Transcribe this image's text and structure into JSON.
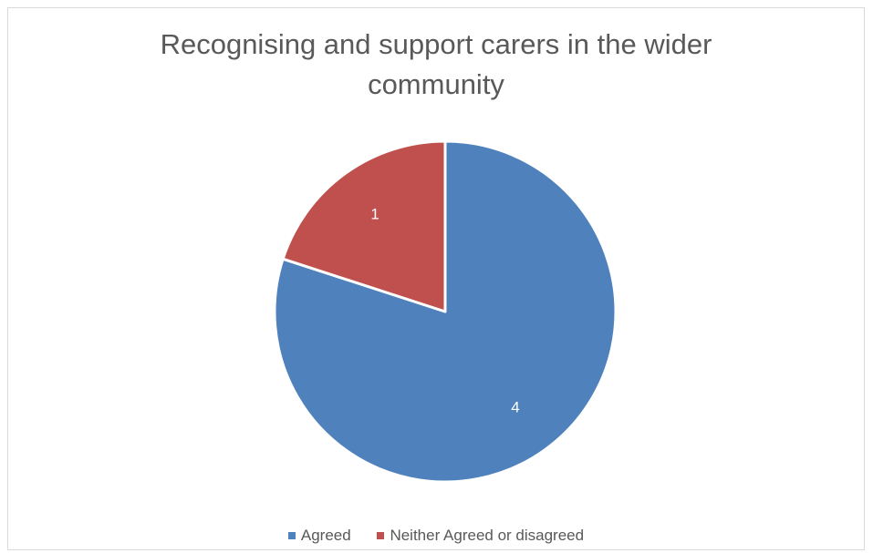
{
  "chart_data": {
    "type": "pie",
    "title": "Recognising and support carers in the wider community",
    "title_lines": [
      "Recognising and support carers in the wider",
      "community"
    ],
    "categories": [
      "Agreed",
      "Neither Agreed or disagreed"
    ],
    "values": [
      4,
      1
    ],
    "colors": [
      "#4f81bd",
      "#c0504d"
    ],
    "data_labels": [
      "4",
      "1"
    ],
    "legend_position": "bottom",
    "start_angle_deg": 0,
    "direction": "clockwise"
  }
}
